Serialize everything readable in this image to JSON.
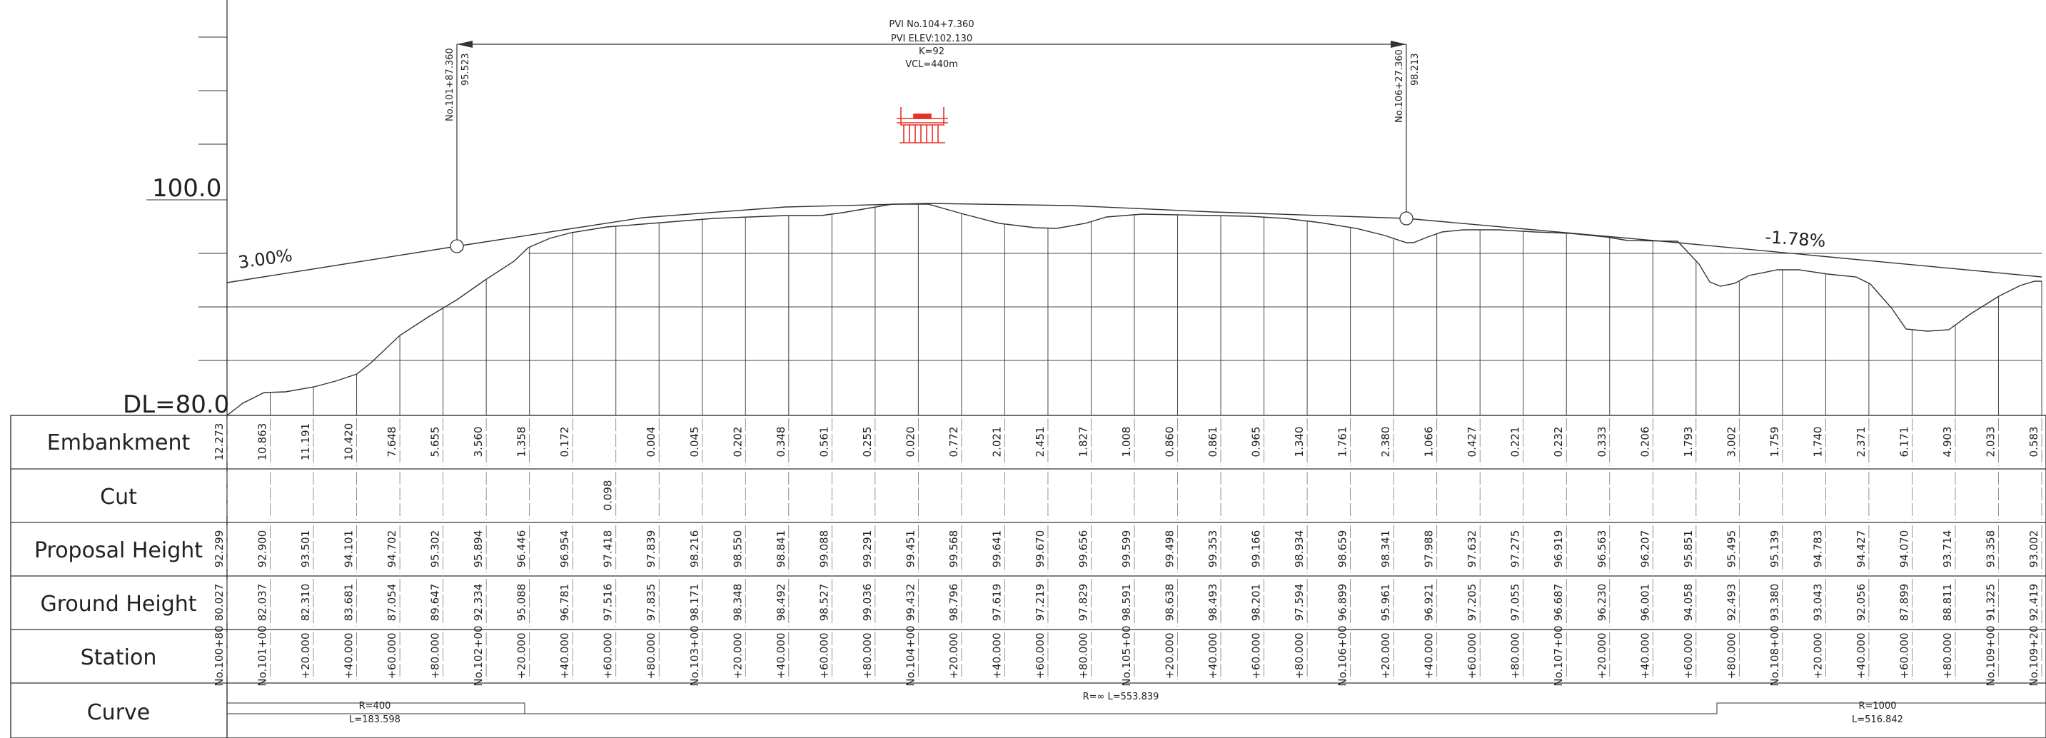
{
  "scale_labels": {
    "upper": "100.0",
    "datum": "DL=80.0"
  },
  "grades": {
    "left": "3.00%",
    "right": "-1.78%"
  },
  "pvi": {
    "station": "PVI No.104+7.360",
    "elevation": "PVI ELEV:102.130",
    "k": "K=92",
    "vcl": "VCL=440m"
  },
  "vc_points": {
    "bvc_station": "No.101+87.360",
    "bvc_elev": "95.523",
    "evc_station": "No.106+27.360",
    "evc_elev": "98.213"
  },
  "rows": {
    "embankment": "Embankment",
    "cut": "Cut",
    "proposal": "Proposal Height",
    "ground": "Ground Height",
    "station": "Station",
    "curve": "Curve"
  },
  "colors": {
    "line": "#333333",
    "structure": "#e8302a"
  },
  "station_labels": [
    "No.100+80",
    "No.101+00",
    "+20.000",
    "+40.000",
    "+60.000",
    "+80.000",
    "No.102+00",
    "+20.000",
    "+40.000",
    "+60.000",
    "+80.000",
    "No.103+00",
    "+20.000",
    "+40.000",
    "+60.000",
    "+80.000",
    "No.104+00",
    "+20.000",
    "+40.000",
    "+60.000",
    "+80.000",
    "No.105+00",
    "+20.000",
    "+40.000",
    "+60.000",
    "+80.000",
    "No.106+00",
    "+20.000",
    "+40.000",
    "+60.000",
    "+80.000",
    "No.107+00",
    "+20.000",
    "+40.000",
    "+60.000",
    "+80.000",
    "No.108+00",
    "+20.000",
    "+40.000",
    "+60.000",
    "+80.000",
    "No.109+00",
    "No.109+20"
  ],
  "embankment": [
    "12.273",
    "10.863",
    "11.191",
    "10.420",
    "7.648",
    "5.655",
    "3.560",
    "1.358",
    "0.172",
    "",
    "0.004",
    "0.045",
    "0.202",
    "0.348",
    "0.561",
    "0.255",
    "0.020",
    "0.772",
    "2.021",
    "2.451",
    "1.827",
    "1.008",
    "0.860",
    "0.861",
    "0.965",
    "1.340",
    "1.761",
    "2.380",
    "1.066",
    "0.427",
    "0.221",
    "0.232",
    "0.333",
    "0.206",
    "1.793",
    "3.002",
    "1.759",
    "1.740",
    "2.371",
    "6.171",
    "4.903",
    "2.033",
    "0.583"
  ],
  "cut": [
    "",
    "",
    "",
    "",
    "",
    "",
    "",
    "",
    "",
    "0.098",
    "",
    "",
    "",
    "",
    "",
    "",
    "",
    "",
    "",
    "",
    "",
    "",
    "",
    "",
    "",
    "",
    "",
    "",
    "",
    "",
    "",
    "",
    "",
    "",
    "",
    "",
    "",
    "",
    "",
    "",
    "",
    "",
    ""
  ],
  "proposal": [
    "92.299",
    "92.900",
    "93.501",
    "94.101",
    "94.702",
    "95.302",
    "95.894",
    "96.446",
    "96.954",
    "97.418",
    "97.839",
    "98.216",
    "98.550",
    "98.841",
    "99.088",
    "99.291",
    "99.451",
    "99.568",
    "99.641",
    "99.670",
    "99.656",
    "99.599",
    "99.498",
    "99.353",
    "99.166",
    "98.934",
    "98.659",
    "98.341",
    "97.988",
    "97.632",
    "97.275",
    "96.919",
    "96.563",
    "96.207",
    "95.851",
    "95.495",
    "95.139",
    "94.783",
    "94.427",
    "94.070",
    "93.714",
    "93.358",
    "93.002"
  ],
  "ground": [
    "80.027",
    "82.037",
    "82.310",
    "83.681",
    "87.054",
    "89.647",
    "92.334",
    "95.088",
    "96.781",
    "97.516",
    "97.835",
    "98.171",
    "98.348",
    "98.492",
    "98.527",
    "99.036",
    "99.432",
    "98.796",
    "97.619",
    "97.219",
    "97.829",
    "98.591",
    "98.638",
    "98.493",
    "98.201",
    "97.594",
    "96.899",
    "95.961",
    "96.921",
    "97.205",
    "97.055",
    "96.687",
    "96.230",
    "96.001",
    "94.058",
    "92.493",
    "93.380",
    "93.043",
    "92.056",
    "87.899",
    "88.811",
    "91.325",
    "92.419"
  ],
  "curves": {
    "left_r": "R=400",
    "left_l": "L=183.598",
    "mid": "R=∞ L=553.839",
    "right_r": "R=1000",
    "right_l": "L=516.842"
  }
}
